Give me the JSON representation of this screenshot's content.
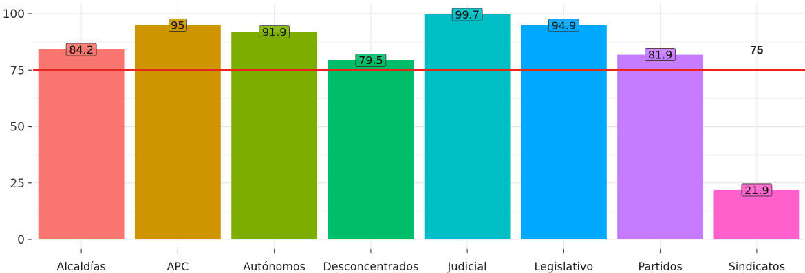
{
  "chart_data": {
    "type": "bar",
    "categories": [
      "Alcaldías",
      "APC",
      "Autónomos",
      "Desconcentrados",
      "Judicial",
      "Legislativo",
      "Partidos",
      "Sindicatos"
    ],
    "values": [
      84.2,
      95,
      91.9,
      79.5,
      99.7,
      94.9,
      81.9,
      21.9
    ],
    "value_labels": [
      "84.2",
      "95",
      "91.9",
      "79.5",
      "99.7",
      "94.9",
      "81.9",
      "21.9"
    ],
    "colors": [
      "#F8766D",
      "#CD9600",
      "#7CAE00",
      "#00BE67",
      "#00BFC4",
      "#00A9FF",
      "#C77CFF",
      "#FF61CC"
    ],
    "yticks": [
      0,
      25,
      50,
      75,
      100
    ],
    "ytick_labels": [
      "0",
      "25",
      "50",
      "75",
      "100"
    ],
    "ylim": [
      0,
      100
    ],
    "grid": true,
    "reference_line": {
      "value": 75,
      "label": "75",
      "color": "#E8261E"
    },
    "title": "",
    "xlabel": "",
    "ylabel": ""
  }
}
